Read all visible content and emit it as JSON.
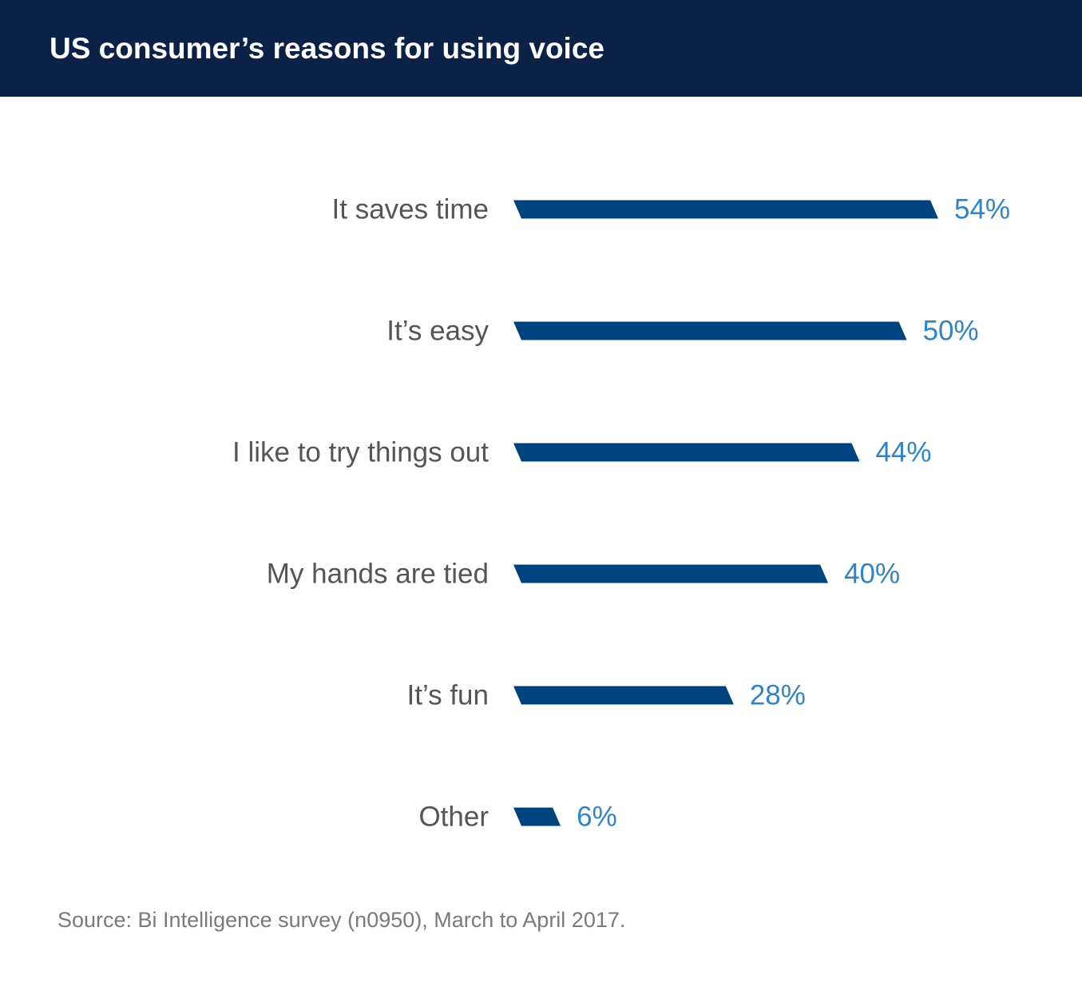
{
  "header": {
    "title": "US consumer’s reasons for using voice"
  },
  "chart_data": {
    "type": "bar",
    "orientation": "horizontal",
    "title": "US consumer’s reasons for using voice",
    "xlabel": "",
    "ylabel": "",
    "categories": [
      "It saves time",
      "It’s easy",
      "I like to try things out",
      "My hands are tied",
      "It’s fun",
      "Other"
    ],
    "values": [
      54,
      50,
      44,
      40,
      28,
      6
    ],
    "value_labels": [
      "54%",
      "50%",
      "44%",
      "40%",
      "28%",
      "6%"
    ],
    "unit": "%",
    "xlim": [
      0,
      54
    ],
    "grid": false,
    "legend": "none",
    "colors": {
      "bar": "#00437f",
      "value_label": "#2f84c8",
      "category_label": "#555555",
      "header_background": "#0b2148",
      "header_text": "#ffffff"
    }
  },
  "footer": {
    "source": "Source: Bi Intelligence survey (n0950), March to April 2017."
  }
}
